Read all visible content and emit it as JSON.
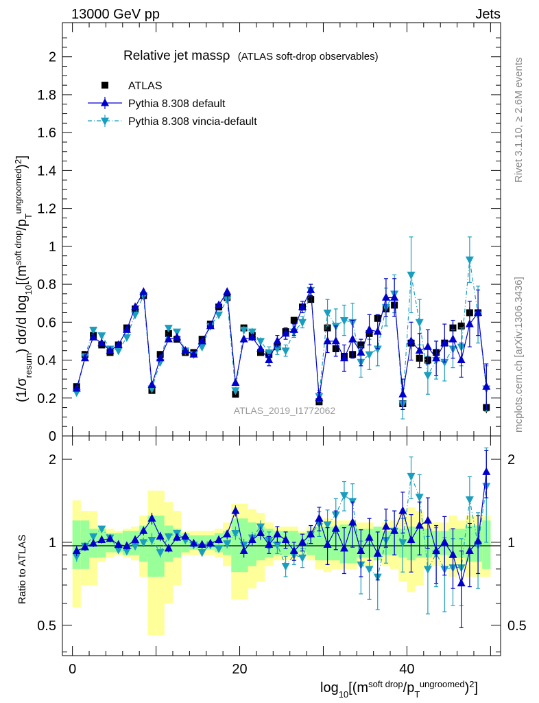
{
  "header": {
    "left": "13000 GeV pp",
    "right": "Jets"
  },
  "title": "Relative jet massρ",
  "title_note": "(ATLAS soft-drop observables)",
  "analysis_id": "ATLAS_2019_I1772062",
  "side_texts": {
    "rivet": "Rivet 3.1.10, ≥ 2.6M events",
    "source": "mcplots.cern.ch [arXiv:1306.3436]"
  },
  "legend": [
    {
      "label": "ATLAS",
      "color": "#000000",
      "marker": "square"
    },
    {
      "label": "Pythia 8.308 default",
      "color": "#0000cc",
      "marker": "triangle-up"
    },
    {
      "label": "Pythia 8.308 vincia-default",
      "color": "#1a9ebf",
      "marker": "triangle-down"
    }
  ],
  "chart_data": [
    {
      "type": "line",
      "panel": "main",
      "ylabel": "(1/σresum) dσ/d log10[(m soft drop/pT ungroomed)2]",
      "ylim": [
        0,
        2.18
      ],
      "yticks": [
        0,
        0.2,
        0.4,
        0.6,
        0.8,
        1,
        1.2,
        1.4,
        1.6,
        1.8,
        2
      ],
      "xlim": [
        -1.2,
        51.2
      ],
      "x": [
        0.5,
        1.5,
        2.5,
        3.5,
        4.5,
        5.5,
        6.5,
        7.5,
        8.5,
        9.5,
        10.5,
        11.5,
        12.5,
        13.5,
        14.5,
        15.5,
        16.5,
        17.5,
        18.5,
        19.5,
        20.5,
        21.5,
        22.5,
        23.5,
        24.5,
        25.5,
        26.5,
        27.5,
        28.5,
        29.5,
        30.5,
        31.5,
        32.5,
        33.5,
        34.5,
        35.5,
        36.5,
        37.5,
        38.5,
        39.5,
        40.5,
        41.5,
        42.5,
        43.5,
        44.5,
        45.5,
        46.5,
        47.5,
        48.5,
        49.5
      ],
      "series": [
        {
          "name": "ATLAS",
          "values": [
            0.26,
            0.43,
            0.53,
            0.48,
            0.44,
            0.48,
            0.57,
            0.67,
            0.74,
            0.24,
            0.43,
            0.54,
            0.51,
            0.44,
            0.44,
            0.51,
            0.59,
            0.68,
            0.73,
            0.22,
            0.57,
            0.53,
            0.44,
            0.43,
            0.47,
            0.55,
            0.61,
            0.68,
            0.72,
            0.18,
            0.57,
            0.46,
            0.42,
            0.43,
            0.48,
            0.54,
            0.62,
            0.67,
            0.69,
            0.17,
            0.49,
            0.41,
            0.4,
            0.44,
            0.49,
            0.57,
            0.58,
            0.65,
            0.65,
            0.15
          ],
          "errors": [
            0.01,
            0.01,
            0.01,
            0.01,
            0.01,
            0.01,
            0.01,
            0.01,
            0.01,
            0.01,
            0.01,
            0.01,
            0.01,
            0.01,
            0.01,
            0.01,
            0.01,
            0.01,
            0.01,
            0.01,
            0.01,
            0.01,
            0.01,
            0.01,
            0.01,
            0.01,
            0.01,
            0.01,
            0.01,
            0.01,
            0.02,
            0.02,
            0.02,
            0.02,
            0.02,
            0.02,
            0.02,
            0.02,
            0.02,
            0.02,
            0.03,
            0.03,
            0.03,
            0.03,
            0.03,
            0.03,
            0.03,
            0.03,
            0.03,
            0.03
          ]
        },
        {
          "name": "Pythia 8.308 default",
          "values": [
            0.25,
            0.41,
            0.52,
            0.49,
            0.45,
            0.48,
            0.56,
            0.68,
            0.76,
            0.27,
            0.41,
            0.51,
            0.52,
            0.45,
            0.43,
            0.5,
            0.58,
            0.69,
            0.76,
            0.28,
            0.51,
            0.52,
            0.46,
            0.4,
            0.5,
            0.54,
            0.56,
            0.68,
            0.77,
            0.2,
            0.5,
            0.5,
            0.41,
            0.51,
            0.44,
            0.56,
            0.55,
            0.73,
            0.73,
            0.22,
            0.5,
            0.45,
            0.47,
            0.41,
            0.49,
            0.51,
            0.4,
            0.59,
            0.65,
            0.26
          ],
          "errors": [
            0.01,
            0.01,
            0.01,
            0.01,
            0.01,
            0.01,
            0.01,
            0.01,
            0.01,
            0.01,
            0.01,
            0.01,
            0.01,
            0.01,
            0.01,
            0.01,
            0.01,
            0.01,
            0.01,
            0.01,
            0.02,
            0.02,
            0.02,
            0.03,
            0.03,
            0.03,
            0.03,
            0.03,
            0.03,
            0.03,
            0.06,
            0.08,
            0.07,
            0.1,
            0.07,
            0.08,
            0.09,
            0.1,
            0.1,
            0.08,
            0.1,
            0.09,
            0.09,
            0.09,
            0.1,
            0.1,
            0.09,
            0.12,
            0.12,
            0.12
          ]
        },
        {
          "name": "Pythia 8.308 vincia-default",
          "values": [
            0.23,
            0.42,
            0.56,
            0.53,
            0.46,
            0.45,
            0.52,
            0.64,
            0.74,
            0.25,
            0.39,
            0.57,
            0.55,
            0.45,
            0.43,
            0.47,
            0.58,
            0.64,
            0.72,
            0.24,
            0.56,
            0.55,
            0.5,
            0.44,
            0.46,
            0.45,
            0.55,
            0.6,
            0.77,
            0.21,
            0.65,
            0.58,
            0.61,
            0.6,
            0.39,
            0.43,
            0.46,
            0.68,
            0.75,
            0.17,
            0.85,
            0.6,
            0.32,
            0.4,
            0.39,
            0.46,
            0.47,
            0.93,
            0.64,
            0.25
          ],
          "errors": [
            0.01,
            0.01,
            0.01,
            0.01,
            0.01,
            0.01,
            0.01,
            0.01,
            0.01,
            0.01,
            0.01,
            0.01,
            0.01,
            0.01,
            0.01,
            0.01,
            0.01,
            0.01,
            0.01,
            0.01,
            0.02,
            0.02,
            0.02,
            0.03,
            0.03,
            0.03,
            0.03,
            0.03,
            0.03,
            0.03,
            0.07,
            0.09,
            0.08,
            0.1,
            0.08,
            0.08,
            0.09,
            0.1,
            0.1,
            0.08,
            0.2,
            0.12,
            0.1,
            0.1,
            0.1,
            0.1,
            0.1,
            0.12,
            0.15,
            0.12
          ]
        }
      ]
    },
    {
      "type": "line",
      "panel": "ratio",
      "ylabel": "Ratio to ATLAS",
      "ylim": [
        0.388,
        2.431
      ],
      "log_y": true,
      "yticks": [
        0.5,
        1,
        2
      ],
      "xlabel": "log10[(m soft drop/pT ungroomed)2]",
      "xlim": [
        -1.2,
        51.2
      ],
      "xticks": [
        0,
        20,
        40
      ],
      "x": [
        0.5,
        1.5,
        2.5,
        3.5,
        4.5,
        5.5,
        6.5,
        7.5,
        8.5,
        9.5,
        10.5,
        11.5,
        12.5,
        13.5,
        14.5,
        15.5,
        16.5,
        17.5,
        18.5,
        19.5,
        20.5,
        21.5,
        22.5,
        23.5,
        24.5,
        25.5,
        26.5,
        27.5,
        28.5,
        29.5,
        30.5,
        31.5,
        32.5,
        33.5,
        34.5,
        35.5,
        36.5,
        37.5,
        38.5,
        39.5,
        40.5,
        41.5,
        42.5,
        43.5,
        44.5,
        45.5,
        46.5,
        47.5,
        48.5,
        49.5
      ],
      "bands": {
        "inner_color": "#99ff99",
        "outer_color": "#ffff99",
        "inner_half": [
          0.2,
          0.2,
          0.12,
          0.12,
          0.08,
          0.08,
          0.1,
          0.1,
          0.15,
          0.25,
          0.25,
          0.15,
          0.12,
          0.08,
          0.06,
          0.06,
          0.06,
          0.08,
          0.1,
          0.22,
          0.22,
          0.18,
          0.14,
          0.12,
          0.1,
          0.1,
          0.1,
          0.08,
          0.1,
          0.14,
          0.14,
          0.14,
          0.16,
          0.16,
          0.12,
          0.12,
          0.14,
          0.1,
          0.1,
          0.12,
          0.14,
          0.12,
          0.12,
          0.1,
          0.1,
          0.12,
          0.12,
          0.15,
          0.15,
          0.2
        ],
        "outer_half": [
          0.42,
          0.3,
          0.3,
          0.15,
          0.12,
          0.1,
          0.12,
          0.14,
          0.25,
          0.54,
          0.54,
          0.4,
          0.3,
          0.1,
          0.1,
          0.1,
          0.1,
          0.12,
          0.18,
          0.38,
          0.38,
          0.32,
          0.28,
          0.18,
          0.14,
          0.14,
          0.14,
          0.1,
          0.14,
          0.2,
          0.22,
          0.2,
          0.2,
          0.2,
          0.18,
          0.18,
          0.14,
          0.18,
          0.2,
          0.28,
          0.34,
          0.3,
          0.2,
          0.18,
          0.18,
          0.25,
          0.2,
          0.25,
          0.25,
          0.25
        ]
      },
      "series": [
        {
          "name": "Pythia 8.308 default",
          "values": [
            0.93,
            0.96,
            0.99,
            1.02,
            1.03,
            0.98,
            0.97,
            1.02,
            1.1,
            1.22,
            1.05,
            0.95,
            1.04,
            1.05,
            0.99,
            0.98,
            0.99,
            1.02,
            1.07,
            1.3,
            0.93,
            1.02,
            1.08,
            0.98,
            1.07,
            1.02,
            0.93,
            1.0,
            1.07,
            1.22,
            0.98,
            1.12,
            0.95,
            1.18,
            0.93,
            1.04,
            0.91,
            1.14,
            1.1,
            1.3,
            1.02,
            1.15,
            1.2,
            0.93,
            1.0,
            0.9,
            0.71,
            0.93,
            1.01,
            1.8
          ],
          "errors": [
            0.04,
            0.03,
            0.03,
            0.03,
            0.03,
            0.03,
            0.03,
            0.03,
            0.04,
            0.06,
            0.04,
            0.03,
            0.03,
            0.03,
            0.03,
            0.03,
            0.03,
            0.03,
            0.04,
            0.06,
            0.05,
            0.05,
            0.06,
            0.07,
            0.07,
            0.07,
            0.07,
            0.07,
            0.08,
            0.12,
            0.15,
            0.18,
            0.18,
            0.22,
            0.18,
            0.18,
            0.18,
            0.18,
            0.2,
            0.22,
            0.24,
            0.25,
            0.25,
            0.22,
            0.24,
            0.22,
            0.22,
            0.24,
            0.24,
            0.35
          ]
        },
        {
          "name": "Pythia 8.308 vincia-default",
          "values": [
            0.89,
            0.97,
            1.05,
            1.12,
            1.04,
            0.94,
            0.93,
            0.97,
            1.0,
            1.02,
            0.92,
            1.05,
            1.08,
            1.02,
            0.98,
            0.92,
            0.98,
            0.95,
            0.99,
            1.08,
            0.98,
            1.04,
            1.14,
            1.02,
            0.98,
            0.82,
            0.9,
            0.88,
            1.07,
            1.17,
            1.16,
            1.26,
            1.48,
            1.41,
            0.83,
            0.8,
            0.75,
            1.02,
            1.1,
            1.0,
            1.74,
            1.46,
            0.8,
            0.91,
            0.8,
            0.81,
            0.81,
            1.43,
            0.98,
            1.6
          ],
          "errors": [
            0.04,
            0.03,
            0.03,
            0.03,
            0.03,
            0.03,
            0.03,
            0.03,
            0.04,
            0.06,
            0.04,
            0.03,
            0.03,
            0.03,
            0.03,
            0.03,
            0.03,
            0.03,
            0.04,
            0.06,
            0.05,
            0.05,
            0.06,
            0.07,
            0.07,
            0.07,
            0.07,
            0.07,
            0.08,
            0.12,
            0.15,
            0.18,
            0.18,
            0.22,
            0.18,
            0.18,
            0.18,
            0.18,
            0.2,
            0.22,
            0.3,
            0.3,
            0.25,
            0.22,
            0.24,
            0.22,
            0.22,
            0.3,
            0.3,
            0.6
          ]
        }
      ]
    }
  ]
}
